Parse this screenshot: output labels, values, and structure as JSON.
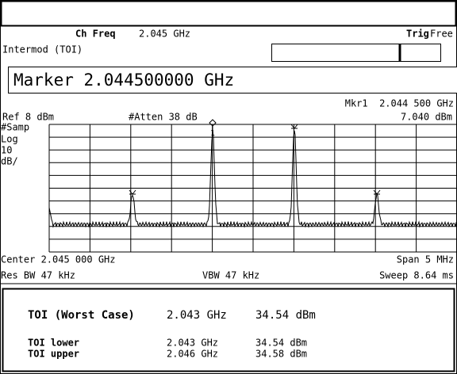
{
  "header": {
    "ch_freq_label": "Ch Freq",
    "ch_freq_value": "2.045 GHz",
    "trig_label": "Trig",
    "trig_value": "Free",
    "mode": "Intermod (TOI)"
  },
  "marker_entry": "Marker 2.044500000 GHz",
  "display": {
    "marker_readout": "Mkr1  2.044 500 GHz",
    "marker_level": "7.040 dBm",
    "ref_level": "Ref 8 dBm",
    "attenuation": "#Atten 38 dB",
    "detector": "#Samp",
    "scale_type": "Log",
    "scale_value": "10",
    "scale_unit": "dB/",
    "marker_number": "1",
    "center": "Center 2.045 000 GHz",
    "span": "Span 5 MHz",
    "res_bw": "Res BW 47 kHz",
    "vbw": "VBW 47 kHz",
    "sweep": "Sweep 8.64 ms"
  },
  "results": {
    "worst_case": {
      "label": "TOI (Worst Case)",
      "freq": "2.043 GHz",
      "level": "34.54 dBm"
    },
    "rows": [
      {
        "label": "TOI lower",
        "freq": "2.043 GHz",
        "level": "34.54 dBm"
      },
      {
        "label": "TOI upper",
        "freq": "2.046 GHz",
        "level": "34.58 dBm"
      }
    ]
  }
}
